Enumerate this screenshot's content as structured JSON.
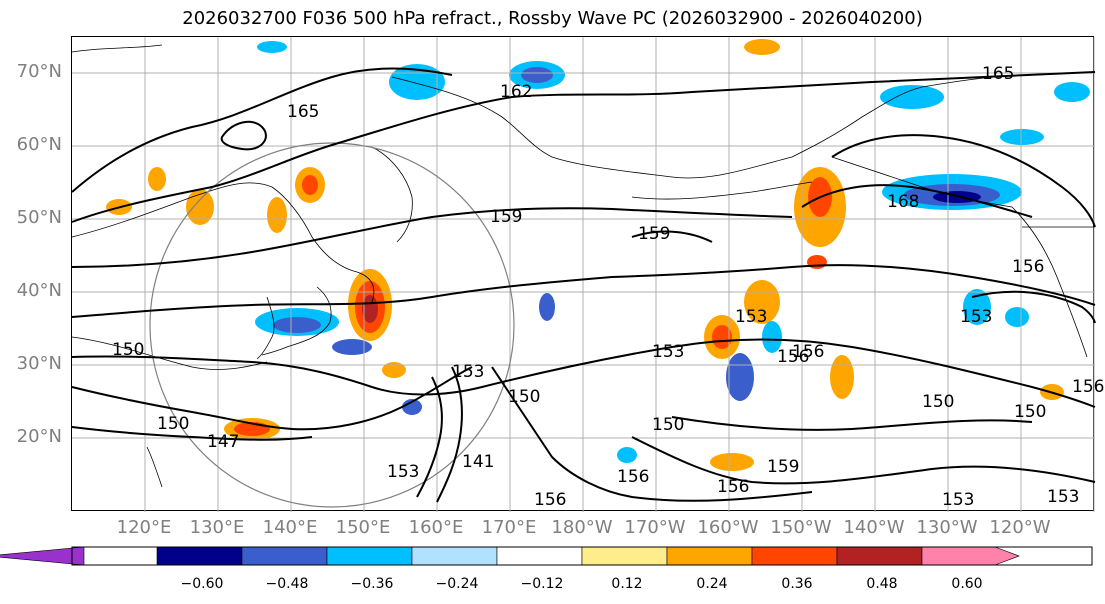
{
  "title": "2026032700 F036 500 hPa refract., Rossby Wave PC (2026032900 - 2026040200)",
  "lat_labels": [
    "70°N",
    "60°N",
    "50°N",
    "40°N",
    "30°N",
    "20°N"
  ],
  "lon_labels": [
    "120°E",
    "130°E",
    "140°E",
    "150°E",
    "160°E",
    "170°E",
    "180°W",
    "170°W",
    "160°W",
    "150°W",
    "140°W",
    "130°W",
    "120°W"
  ],
  "contour_labels": [
    "165",
    "162",
    "165",
    "159",
    "159",
    "150",
    "153",
    "150",
    "150",
    "147",
    "153",
    "153",
    "141",
    "156",
    "156",
    "156",
    "159",
    "156",
    "153",
    "150",
    "150",
    "150",
    "153",
    "153",
    "156",
    "168",
    "156",
    "153",
    "156"
  ],
  "colorbar": {
    "tick_labels": [
      "−0.60",
      "−0.48",
      "−0.36",
      "−0.24",
      "−0.12",
      "0.12",
      "0.24",
      "0.36",
      "0.48",
      "0.60"
    ],
    "colors": [
      "#9932cc",
      "#00008b",
      "#3a5fcd",
      "#00bfff",
      "#b0e2ff",
      "#ffffff",
      "#ffec8b",
      "#ffa500",
      "#ff4500",
      "#b22222",
      "#ff82ab"
    ]
  }
}
